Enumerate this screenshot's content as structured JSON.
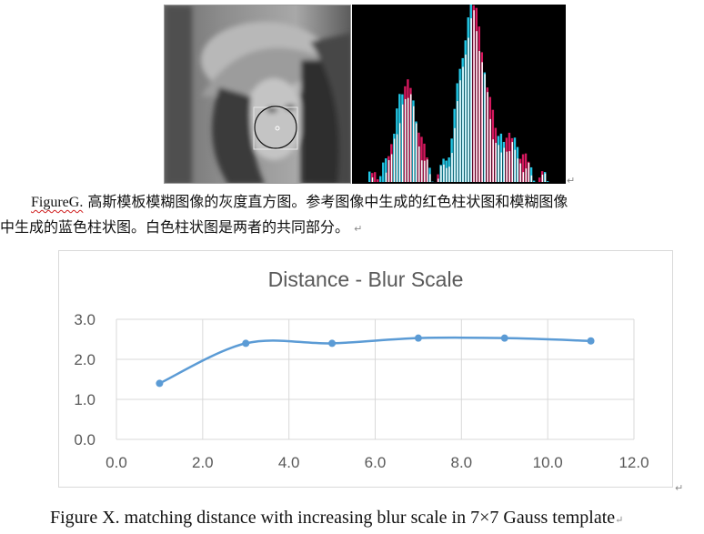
{
  "figure_g": {
    "photo_label": "grayscale face image with circular patch",
    "caption_label": "FigureG.",
    "caption_line1": "高斯模板模糊图像的灰度直方图。参考图像中生成的红色柱状图和模糊图像",
    "caption_line2": "中生成的蓝色柱状图。白色柱状图是两者的共同部分。",
    "colors": {
      "red": "#d6185e",
      "cyan": "#22c7e6",
      "white": "#ffffff",
      "bg": "#000000"
    }
  },
  "chart_data": {
    "type": "line",
    "title": "Distance - Blur Scale",
    "xlabel": "",
    "ylabel": "",
    "x": [
      1,
      3,
      5,
      7,
      9,
      11
    ],
    "series": [
      {
        "values": [
          1.4,
          2.4,
          2.4,
          2.53,
          2.53,
          2.46
        ],
        "color": "#5b9bd5"
      }
    ],
    "xlim": [
      0,
      12
    ],
    "ylim": [
      0,
      3
    ],
    "xticks": [
      "0.0",
      "2.0",
      "4.0",
      "6.0",
      "8.0",
      "10.0",
      "12.0"
    ],
    "yticks": [
      "0.0",
      "1.0",
      "2.0",
      "3.0"
    ],
    "grid": true,
    "smooth": true
  },
  "caption_x": "Figure X. matching distance with increasing blur scale in 7×7 Gauss template"
}
